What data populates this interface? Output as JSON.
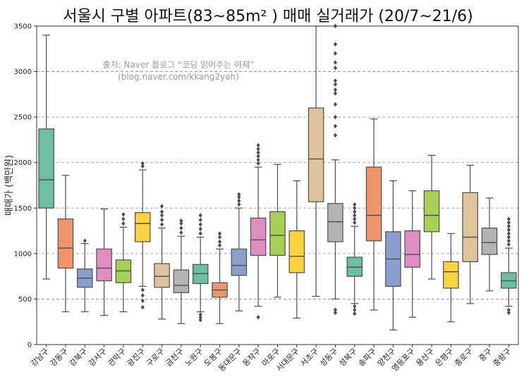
{
  "chart_data": {
    "type": "boxplot",
    "title": "서울시 구별 아파트(83~85m² ) 매매 실거래가 (20/7~21/6)",
    "ylabel": "매매가 (백만원)",
    "xlabel": "",
    "ylim": [
      0,
      3500
    ],
    "yticks": [
      0,
      500,
      1000,
      1500,
      2000,
      2500,
      3000,
      3500
    ],
    "grid": "y-dashed",
    "annotation": [
      "출처: Naver 블로그 “코딩 읽어주는 아재”",
      "(blog.naver.com/kkang2yah)"
    ],
    "boxes": [
      {
        "category": "강남구",
        "color": "#6cbf9e",
        "whisker_low": 720,
        "q1": 1500,
        "median": 1810,
        "q3": 2370,
        "whisker_high": 3400,
        "outliers": []
      },
      {
        "category": "강동구",
        "color": "#f0946c",
        "whisker_low": 360,
        "q1": 840,
        "median": 1060,
        "q3": 1380,
        "whisker_high": 1860,
        "outliers": []
      },
      {
        "category": "강북구",
        "color": "#8a9fcd",
        "whisker_low": 360,
        "q1": 630,
        "median": 730,
        "q3": 830,
        "whisker_high": 1110,
        "outliers": [
          1140
        ]
      },
      {
        "category": "강서구",
        "color": "#e08ec2",
        "whisker_low": 320,
        "q1": 700,
        "median": 840,
        "q3": 1050,
        "whisker_high": 1490,
        "outliers": []
      },
      {
        "category": "관악구",
        "color": "#a6d054",
        "whisker_low": 360,
        "q1": 680,
        "median": 810,
        "q3": 930,
        "whisker_high": 1290,
        "outliers": [
          1330,
          1380,
          1430
        ]
      },
      {
        "category": "광진구",
        "color": "#fad33e",
        "whisker_low": 640,
        "q1": 1130,
        "median": 1330,
        "q3": 1450,
        "whisker_high": 1920,
        "outliers": [
          1960,
          1990,
          410,
          480,
          540,
          600
        ]
      },
      {
        "category": "구로구",
        "color": "#dfc39a",
        "whisker_low": 280,
        "q1": 630,
        "median": 750,
        "q3": 890,
        "whisker_high": 1280,
        "outliers": [
          1320,
          1370,
          1420,
          1460,
          1520
        ]
      },
      {
        "category": "금천구",
        "color": "#b3b3b3",
        "whisker_low": 230,
        "q1": 570,
        "median": 650,
        "q3": 820,
        "whisker_high": 1190,
        "outliers": [
          1230,
          1280,
          1330,
          1360
        ]
      },
      {
        "category": "노원구",
        "color": "#6cbf9e",
        "whisker_low": 360,
        "q1": 670,
        "median": 780,
        "q3": 880,
        "whisker_high": 1180,
        "outliers": [
          1220,
          1270,
          1320,
          1370,
          1420,
          270,
          300,
          330
        ]
      },
      {
        "category": "도봉구",
        "color": "#f0946c",
        "whisker_low": 230,
        "q1": 520,
        "median": 600,
        "q3": 680,
        "whisker_high": 1050,
        "outliers": [
          1090,
          1130,
          1180,
          1220
        ]
      },
      {
        "category": "동대문구",
        "color": "#8a9fcd",
        "whisker_low": 370,
        "q1": 760,
        "median": 870,
        "q3": 1050,
        "whisker_high": 1500,
        "outliers": [
          1540,
          1580,
          1620,
          1650
        ]
      },
      {
        "category": "동작구",
        "color": "#e08ec2",
        "whisker_low": 420,
        "q1": 980,
        "median": 1150,
        "q3": 1390,
        "whisker_high": 1950,
        "outliers": [
          1990,
          2030,
          2070,
          2110,
          2150,
          2190,
          300
        ]
      },
      {
        "category": "마포구",
        "color": "#a6d054",
        "whisker_low": 520,
        "q1": 980,
        "median": 1200,
        "q3": 1460,
        "whisker_high": 1980,
        "outliers": []
      },
      {
        "category": "서대문구",
        "color": "#fad33e",
        "whisker_low": 290,
        "q1": 790,
        "median": 970,
        "q3": 1250,
        "whisker_high": 1800,
        "outliers": []
      },
      {
        "category": "서초구",
        "color": "#dfc39a",
        "whisker_low": 530,
        "q1": 1570,
        "median": 2040,
        "q3": 2600,
        "whisker_high": 3500,
        "outliers": []
      },
      {
        "category": "성동구",
        "color": "#b3b3b3",
        "whisker_low": 500,
        "q1": 1130,
        "median": 1350,
        "q3": 1550,
        "whisker_high": 2030,
        "outliers": [
          2300,
          2400,
          2500,
          2640,
          2760,
          2800,
          2860,
          2900,
          3040,
          3100,
          3200,
          3300,
          3500,
          350,
          380
        ]
      },
      {
        "category": "성북구",
        "color": "#6cbf9e",
        "whisker_low": 450,
        "q1": 750,
        "median": 850,
        "q3": 960,
        "whisker_high": 1300,
        "outliers": [
          1340,
          1380,
          1420,
          1460,
          1500,
          1540,
          340,
          380,
          420
        ]
      },
      {
        "category": "송파구",
        "color": "#f0946c",
        "whisker_low": 380,
        "q1": 1140,
        "median": 1420,
        "q3": 1950,
        "whisker_high": 2480,
        "outliers": []
      },
      {
        "category": "양천구",
        "color": "#8a9fcd",
        "whisker_low": 160,
        "q1": 640,
        "median": 940,
        "q3": 1240,
        "whisker_high": 1800,
        "outliers": []
      },
      {
        "category": "영등포구",
        "color": "#e08ec2",
        "whisker_low": 300,
        "q1": 850,
        "median": 990,
        "q3": 1250,
        "whisker_high": 1690,
        "outliers": []
      },
      {
        "category": "용산구",
        "color": "#a6d054",
        "whisker_low": 720,
        "q1": 1240,
        "median": 1420,
        "q3": 1690,
        "whisker_high": 2080,
        "outliers": []
      },
      {
        "category": "은평구",
        "color": "#fad33e",
        "whisker_low": 250,
        "q1": 620,
        "median": 800,
        "q3": 910,
        "whisker_high": 1220,
        "outliers": []
      },
      {
        "category": "종로구",
        "color": "#dfc39a",
        "whisker_low": 450,
        "q1": 910,
        "median": 1180,
        "q3": 1670,
        "whisker_high": 1970,
        "outliers": []
      },
      {
        "category": "중구",
        "color": "#b3b3b3",
        "whisker_low": 590,
        "q1": 990,
        "median": 1120,
        "q3": 1280,
        "whisker_high": 1610,
        "outliers": []
      },
      {
        "category": "중랑구",
        "color": "#6cbf9e",
        "whisker_low": 420,
        "q1": 620,
        "median": 700,
        "q3": 790,
        "whisker_high": 1060,
        "outliers": [
          1100,
          1140,
          1180,
          1220,
          1260,
          1300,
          1340,
          1380,
          350,
          380
        ]
      }
    ]
  }
}
